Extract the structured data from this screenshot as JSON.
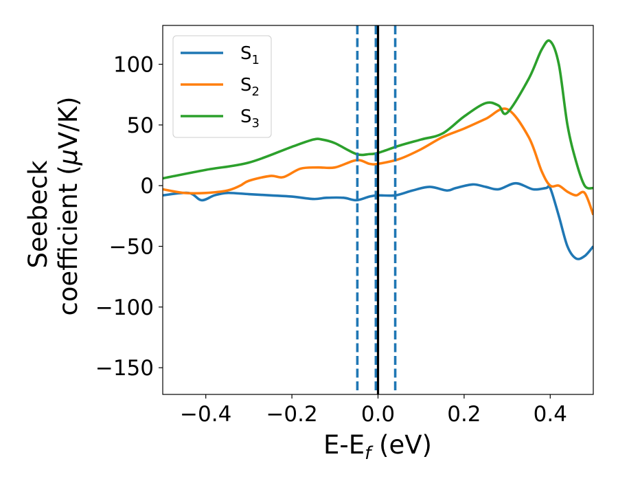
{
  "chart_data": {
    "type": "line",
    "title": "",
    "xlabel": {
      "main": "E-E",
      "sub": "f",
      "unit": " (eV)"
    },
    "ylabel": {
      "line1": "Seebeck",
      "line2_pre": "coefficient  (",
      "mu": "μ",
      "line2_post": "V/K)"
    },
    "xlim": [
      -0.5,
      0.5
    ],
    "ylim": [
      -172,
      132
    ],
    "x_ticks": [
      -0.4,
      -0.2,
      0.0,
      0.2,
      0.4
    ],
    "x_tick_labels": [
      "−0.4",
      "−0.2",
      "0.0",
      "0.2",
      "0.4"
    ],
    "y_ticks": [
      100,
      50,
      0,
      -50,
      -100,
      -150
    ],
    "y_tick_labels": [
      "100",
      "50",
      "0",
      "−50",
      "−100",
      "−150"
    ],
    "grid": false,
    "legend_position": "top-left",
    "vertical_lines": [
      {
        "x": -0.048,
        "style": "dashed",
        "color": "#1f77b4"
      },
      {
        "x": -0.005,
        "style": "dashed",
        "color": "#1f77b4"
      },
      {
        "x": 0.0,
        "style": "solid",
        "color": "#000000"
      },
      {
        "x": 0.04,
        "style": "dashed",
        "color": "#1f77b4"
      }
    ],
    "series": [
      {
        "name": "S",
        "subscript": "1",
        "color": "#1f77b4",
        "x": [
          -0.5,
          -0.44,
          -0.41,
          -0.38,
          -0.35,
          -0.3,
          -0.25,
          -0.2,
          -0.15,
          -0.12,
          -0.08,
          -0.05,
          -0.02,
          0.0,
          0.04,
          0.08,
          0.12,
          0.16,
          0.18,
          0.22,
          0.25,
          0.28,
          0.32,
          0.36,
          0.39,
          0.4,
          0.42,
          0.44,
          0.46,
          0.48,
          0.5
        ],
        "y": [
          -8,
          -6,
          -12,
          -8,
          -6,
          -7,
          -8,
          -9,
          -11,
          -10,
          -10,
          -12,
          -9,
          -8,
          -8,
          -4,
          -1,
          -4,
          -2,
          1,
          -1,
          -3,
          2,
          -3,
          -2,
          -2,
          -25,
          -50,
          -60,
          -58,
          -50
        ]
      },
      {
        "name": "S",
        "subscript": "2",
        "color": "#ff7f0e",
        "x": [
          -0.5,
          -0.45,
          -0.4,
          -0.35,
          -0.32,
          -0.3,
          -0.25,
          -0.22,
          -0.18,
          -0.14,
          -0.1,
          -0.05,
          -0.02,
          0.0,
          0.05,
          0.1,
          0.15,
          0.2,
          0.25,
          0.3,
          0.35,
          0.38,
          0.4,
          0.42,
          0.44,
          0.46,
          0.48,
          0.5
        ],
        "y": [
          -3,
          -6,
          -6,
          -4,
          0,
          4,
          8,
          7,
          14,
          15,
          15,
          21,
          18,
          18,
          22,
          30,
          40,
          47,
          55,
          63,
          40,
          12,
          0,
          0,
          -5,
          -8,
          -6,
          -24
        ]
      },
      {
        "name": "S",
        "subscript": "3",
        "color": "#2ca02c",
        "x": [
          -0.5,
          -0.4,
          -0.3,
          -0.2,
          -0.15,
          -0.13,
          -0.1,
          -0.05,
          -0.02,
          0.0,
          0.05,
          0.1,
          0.15,
          0.2,
          0.25,
          0.28,
          0.3,
          0.35,
          0.38,
          0.4,
          0.42,
          0.44,
          0.46,
          0.48,
          0.5
        ],
        "y": [
          6,
          13,
          19,
          32,
          38,
          38,
          35,
          26,
          26,
          27,
          33,
          38,
          43,
          57,
          68,
          66,
          60,
          88,
          112,
          119,
          100,
          50,
          20,
          0,
          -2
        ]
      }
    ]
  }
}
